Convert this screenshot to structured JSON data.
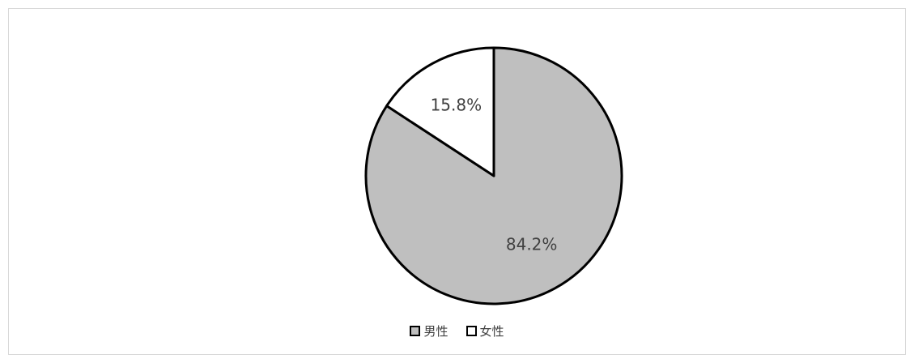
{
  "chart_data": {
    "type": "pie",
    "categories": [
      "男性",
      "女性"
    ],
    "values": [
      84.2,
      15.8
    ],
    "value_labels": [
      "84.2%",
      "15.8%"
    ],
    "colors": [
      "#bfbfbf",
      "#ffffff"
    ],
    "outline_color": "#000000",
    "start": "12 o'clock, clockwise",
    "legend_position": "bottom"
  },
  "legend": {
    "items": [
      {
        "label": "男性",
        "color": "#bfbfbf"
      },
      {
        "label": "女性",
        "color": "#ffffff"
      }
    ]
  }
}
